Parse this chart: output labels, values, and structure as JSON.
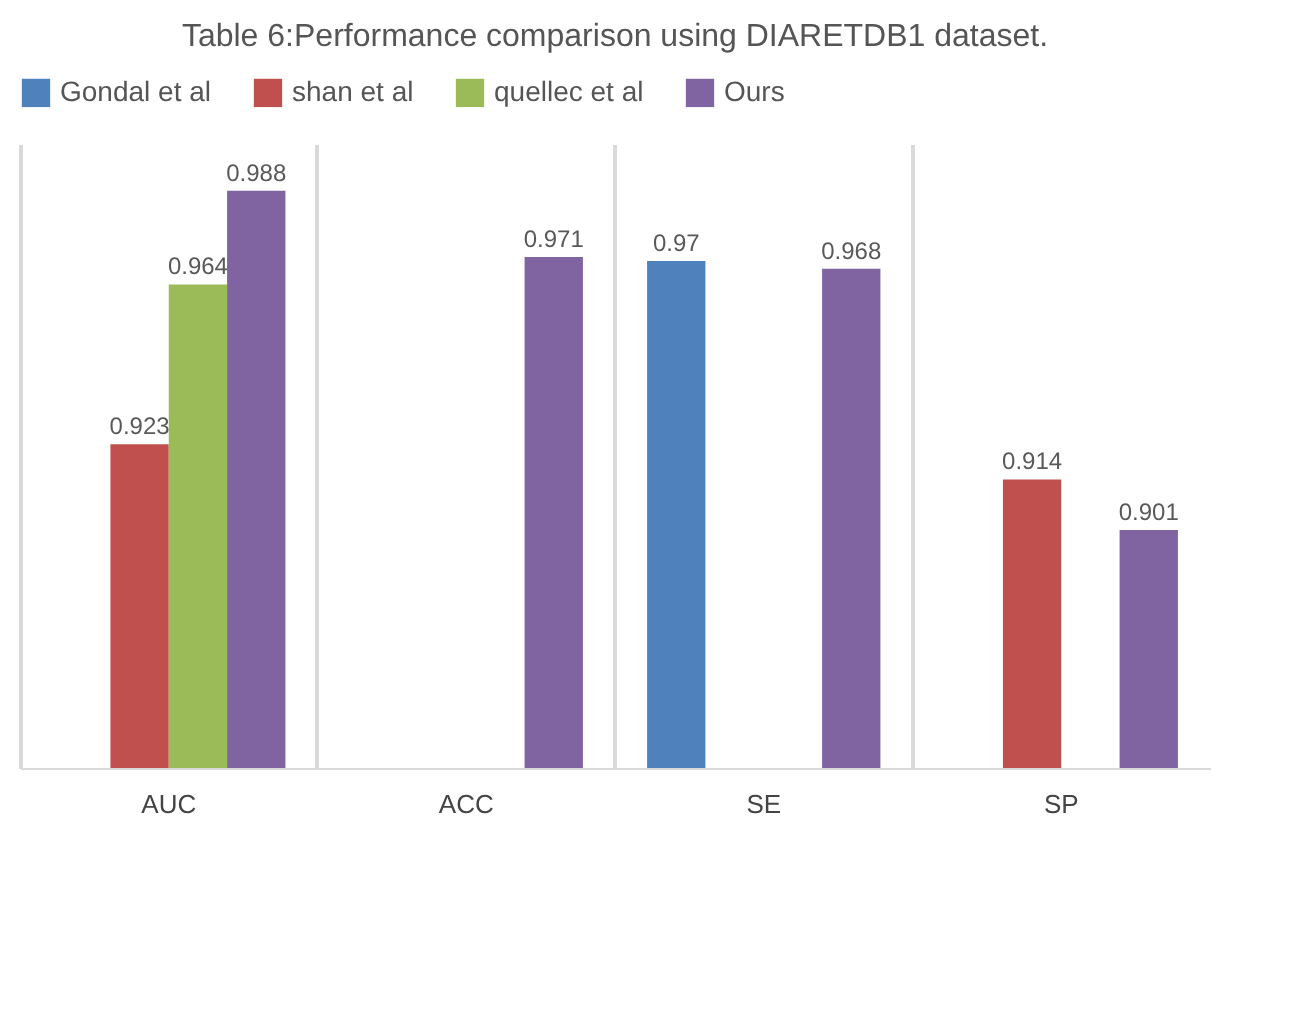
{
  "chart_data": {
    "type": "bar",
    "title": "Table 6:Performance comparison using DIARETDB1 dataset.",
    "categories": [
      "AUC",
      "ACC",
      "SE",
      "SP"
    ],
    "series": [
      {
        "name": "Gondal et al",
        "color": "#4f81bd",
        "values": [
          null,
          null,
          0.97,
          null
        ]
      },
      {
        "name": "shan et al",
        "color": "#c0504d",
        "values": [
          0.923,
          null,
          null,
          0.914
        ]
      },
      {
        "name": "quellec et al",
        "color": "#9bbb59",
        "values": [
          0.964,
          null,
          null,
          null
        ]
      },
      {
        "name": "Ours",
        "color": "#8064a2",
        "values": [
          0.988,
          0.971,
          0.968,
          0.901
        ]
      }
    ],
    "ylim": [
      0.84,
      1.0
    ],
    "data_labels": true,
    "grid": "x",
    "legend": "top",
    "tick_labels": "x"
  }
}
